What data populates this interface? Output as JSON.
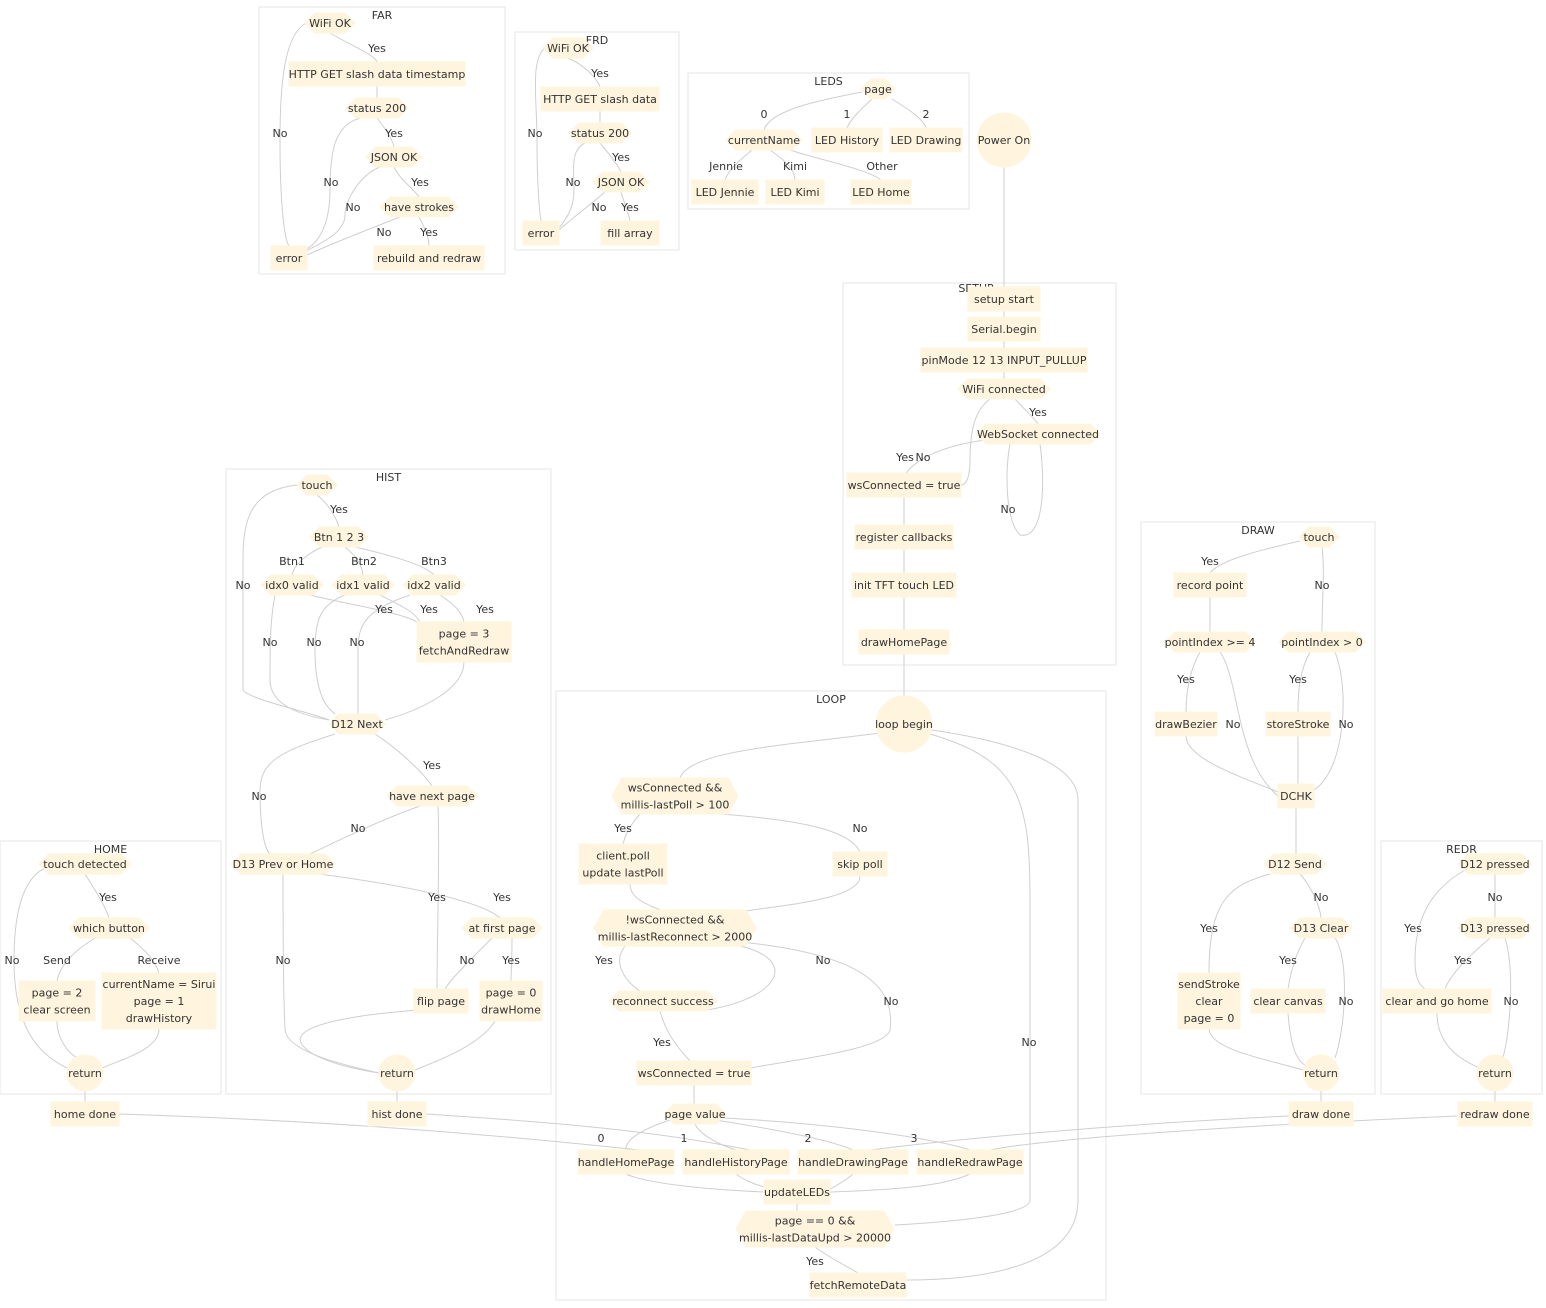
{
  "clusters": [
    {
      "id": "FAR",
      "label": "FAR"
    },
    {
      "id": "FRD",
      "label": "FRD"
    },
    {
      "id": "LEDS",
      "label": "LEDS"
    },
    {
      "id": "SETUP",
      "label": "SETUP"
    },
    {
      "id": "HIST",
      "label": "HIST"
    },
    {
      "id": "LOOP",
      "label": "LOOP"
    },
    {
      "id": "DRAW",
      "label": "DRAW"
    },
    {
      "id": "HOME",
      "label": "HOME"
    },
    {
      "id": "REDR",
      "label": "REDR"
    }
  ],
  "nodes": [
    {
      "id": "far_wifi",
      "lines": [
        "WiFi OK"
      ]
    },
    {
      "id": "far_get",
      "lines": [
        "HTTP GET slash data timestamp"
      ]
    },
    {
      "id": "far_status",
      "lines": [
        "status 200"
      ]
    },
    {
      "id": "far_json",
      "lines": [
        "JSON OK"
      ]
    },
    {
      "id": "far_strokes",
      "lines": [
        "have strokes"
      ]
    },
    {
      "id": "far_error",
      "lines": [
        "error"
      ]
    },
    {
      "id": "far_rebuild",
      "lines": [
        "rebuild and redraw"
      ]
    },
    {
      "id": "frd_wifi",
      "lines": [
        "WiFi OK"
      ]
    },
    {
      "id": "frd_get",
      "lines": [
        "HTTP GET slash data"
      ]
    },
    {
      "id": "frd_status",
      "lines": [
        "status 200"
      ]
    },
    {
      "id": "frd_json",
      "lines": [
        "JSON OK"
      ]
    },
    {
      "id": "frd_error",
      "lines": [
        "error"
      ]
    },
    {
      "id": "frd_fill",
      "lines": [
        "fill array"
      ]
    },
    {
      "id": "leds_page",
      "lines": [
        "page"
      ]
    },
    {
      "id": "leds_current",
      "lines": [
        "currentName"
      ]
    },
    {
      "id": "leds_history",
      "lines": [
        "LED History"
      ]
    },
    {
      "id": "leds_drawing",
      "lines": [
        "LED Drawing"
      ]
    },
    {
      "id": "leds_jennie",
      "lines": [
        "LED Jennie"
      ]
    },
    {
      "id": "leds_kimi",
      "lines": [
        "LED Kimi"
      ]
    },
    {
      "id": "leds_home",
      "lines": [
        "LED Home"
      ]
    },
    {
      "id": "power_on",
      "lines": [
        "Power On"
      ]
    },
    {
      "id": "setup_start",
      "lines": [
        "setup start"
      ]
    },
    {
      "id": "serial_begin",
      "lines": [
        "Serial.begin"
      ]
    },
    {
      "id": "pinmode",
      "lines": [
        "pinMode 12 13 INPUT_PULLUP"
      ]
    },
    {
      "id": "wifi_conn",
      "lines": [
        "WiFi connected"
      ]
    },
    {
      "id": "ws_conn",
      "lines": [
        "WebSocket connected"
      ]
    },
    {
      "id": "ws_true_setup",
      "lines": [
        "wsConnected = true"
      ]
    },
    {
      "id": "reg_cb",
      "lines": [
        "register callbacks"
      ]
    },
    {
      "id": "init_tft",
      "lines": [
        "init TFT touch LED"
      ]
    },
    {
      "id": "draw_home_page",
      "lines": [
        "drawHomePage"
      ]
    },
    {
      "id": "hist_touch",
      "lines": [
        "touch"
      ]
    },
    {
      "id": "hist_btn",
      "lines": [
        "Btn 1 2 3"
      ]
    },
    {
      "id": "hist_idx0",
      "lines": [
        "idx0 valid"
      ]
    },
    {
      "id": "hist_idx1",
      "lines": [
        "idx1 valid"
      ]
    },
    {
      "id": "hist_idx2",
      "lines": [
        "idx2 valid"
      ]
    },
    {
      "id": "hist_page3",
      "lines": [
        "page = 3",
        "fetchAndRedraw"
      ]
    },
    {
      "id": "hist_d12",
      "lines": [
        "D12 Next"
      ]
    },
    {
      "id": "hist_next",
      "lines": [
        "have next page"
      ]
    },
    {
      "id": "hist_d13",
      "lines": [
        "D13 Prev or Home"
      ]
    },
    {
      "id": "hist_first",
      "lines": [
        "at first page"
      ]
    },
    {
      "id": "hist_flip",
      "lines": [
        "flip page"
      ]
    },
    {
      "id": "hist_page0",
      "lines": [
        "page = 0",
        "drawHome"
      ]
    },
    {
      "id": "hist_return",
      "lines": [
        "return"
      ]
    },
    {
      "id": "loop_begin",
      "lines": [
        "loop begin"
      ]
    },
    {
      "id": "poll_cond",
      "lines": [
        "wsConnected &&",
        "millis-lastPoll > 100"
      ]
    },
    {
      "id": "client_poll",
      "lines": [
        "client.poll",
        "update lastPoll"
      ]
    },
    {
      "id": "skip_poll",
      "lines": [
        "skip poll"
      ]
    },
    {
      "id": "reconn_cond",
      "lines": [
        "!wsConnected &&",
        "millis-lastReconnect > 2000"
      ]
    },
    {
      "id": "reconn_ok",
      "lines": [
        "reconnect success"
      ]
    },
    {
      "id": "ws_true_loop",
      "lines": [
        "wsConnected = true"
      ]
    },
    {
      "id": "page_value",
      "lines": [
        "page value"
      ]
    },
    {
      "id": "h_home",
      "lines": [
        "handleHomePage"
      ]
    },
    {
      "id": "h_hist",
      "lines": [
        "handleHistoryPage"
      ]
    },
    {
      "id": "h_draw",
      "lines": [
        "handleDrawingPage"
      ]
    },
    {
      "id": "h_redraw",
      "lines": [
        "handleRedrawPage"
      ]
    },
    {
      "id": "update_leds",
      "lines": [
        "updateLEDs"
      ]
    },
    {
      "id": "page0_cond",
      "lines": [
        "page == 0 &&",
        "millis-lastDataUpd > 20000"
      ]
    },
    {
      "id": "fetch_remote",
      "lines": [
        "fetchRemoteData"
      ]
    },
    {
      "id": "draw_touch",
      "lines": [
        "touch"
      ]
    },
    {
      "id": "record_point",
      "lines": [
        "record point"
      ]
    },
    {
      "id": "pi_ge4",
      "lines": [
        "pointIndex >= 4"
      ]
    },
    {
      "id": "pi_gt0",
      "lines": [
        "pointIndex > 0"
      ]
    },
    {
      "id": "draw_bezier",
      "lines": [
        "drawBezier"
      ]
    },
    {
      "id": "store_stroke",
      "lines": [
        "storeStroke"
      ]
    },
    {
      "id": "dchk",
      "lines": [
        "DCHK"
      ]
    },
    {
      "id": "d12_send",
      "lines": [
        "D12 Send"
      ]
    },
    {
      "id": "send_stroke",
      "lines": [
        "sendStroke",
        "clear",
        "page = 0"
      ]
    },
    {
      "id": "d13_clear",
      "lines": [
        "D13 Clear"
      ]
    },
    {
      "id": "clear_canvas",
      "lines": [
        "clear canvas"
      ]
    },
    {
      "id": "draw_return",
      "lines": [
        "return"
      ]
    },
    {
      "id": "home_touch",
      "lines": [
        "touch detected"
      ]
    },
    {
      "id": "which_btn",
      "lines": [
        "which button"
      ]
    },
    {
      "id": "home_page2",
      "lines": [
        "page = 2",
        "clear screen"
      ]
    },
    {
      "id": "home_receive",
      "lines": [
        "currentName = Sirui",
        "page = 1",
        "drawHistory"
      ]
    },
    {
      "id": "home_return",
      "lines": [
        "return"
      ]
    },
    {
      "id": "d12_pressed",
      "lines": [
        "D12 pressed"
      ]
    },
    {
      "id": "d13_pressed",
      "lines": [
        "D13 pressed"
      ]
    },
    {
      "id": "clear_go_home",
      "lines": [
        "clear and go home"
      ]
    },
    {
      "id": "redr_return",
      "lines": [
        "return"
      ]
    },
    {
      "id": "home_done",
      "lines": [
        "home done"
      ]
    },
    {
      "id": "hist_done",
      "lines": [
        "hist done"
      ]
    },
    {
      "id": "draw_done",
      "lines": [
        "draw done"
      ]
    },
    {
      "id": "redraw_done",
      "lines": [
        "redraw done"
      ]
    }
  ],
  "edges": [
    {
      "from": "far_wifi",
      "to": "far_get",
      "label": "Yes"
    },
    {
      "from": "far_wifi",
      "to": "far_error",
      "label": "No"
    },
    {
      "from": "far_get",
      "to": "far_status",
      "label": ""
    },
    {
      "from": "far_status",
      "to": "far_json",
      "label": "Yes"
    },
    {
      "from": "far_status",
      "to": "far_error",
      "label": "No"
    },
    {
      "from": "far_json",
      "to": "far_strokes",
      "label": "Yes"
    },
    {
      "from": "far_json",
      "to": "far_error",
      "label": "No"
    },
    {
      "from": "far_strokes",
      "to": "far_rebuild",
      "label": "Yes"
    },
    {
      "from": "far_strokes",
      "to": "far_error",
      "label": "No"
    },
    {
      "from": "frd_wifi",
      "to": "frd_get",
      "label": "Yes"
    },
    {
      "from": "frd_wifi",
      "to": "frd_error",
      "label": "No"
    },
    {
      "from": "frd_get",
      "to": "frd_status",
      "label": ""
    },
    {
      "from": "frd_status",
      "to": "frd_json",
      "label": "Yes"
    },
    {
      "from": "frd_status",
      "to": "frd_error",
      "label": "No"
    },
    {
      "from": "frd_json",
      "to": "frd_fill",
      "label": "Yes"
    },
    {
      "from": "frd_json",
      "to": "frd_error",
      "label": "No"
    },
    {
      "from": "leds_page",
      "to": "leds_current",
      "label": "0"
    },
    {
      "from": "leds_page",
      "to": "leds_history",
      "label": "1"
    },
    {
      "from": "leds_page",
      "to": "leds_drawing",
      "label": "2"
    },
    {
      "from": "leds_current",
      "to": "leds_jennie",
      "label": "Jennie"
    },
    {
      "from": "leds_current",
      "to": "leds_kimi",
      "label": "Kimi"
    },
    {
      "from": "leds_current",
      "to": "leds_home",
      "label": "Other"
    },
    {
      "from": "power_on",
      "to": "setup_start",
      "label": ""
    },
    {
      "from": "setup_start",
      "to": "serial_begin",
      "label": ""
    },
    {
      "from": "serial_begin",
      "to": "pinmode",
      "label": ""
    },
    {
      "from": "pinmode",
      "to": "wifi_conn",
      "label": ""
    },
    {
      "from": "wifi_conn",
      "to": "ws_conn",
      "label": "Yes"
    },
    {
      "from": "wifi_conn",
      "to": "ws_true_setup",
      "label": "No"
    },
    {
      "from": "ws_conn",
      "to": "ws_true_setup",
      "label": "Yes"
    },
    {
      "from": "ws_conn",
      "to": "ws_conn",
      "label": "No"
    },
    {
      "from": "ws_true_setup",
      "to": "reg_cb",
      "label": ""
    },
    {
      "from": "reg_cb",
      "to": "init_tft",
      "label": ""
    },
    {
      "from": "init_tft",
      "to": "draw_home_page",
      "label": ""
    },
    {
      "from": "draw_home_page",
      "to": "loop_begin",
      "label": ""
    },
    {
      "from": "hist_touch",
      "to": "hist_btn",
      "label": "Yes"
    },
    {
      "from": "hist_touch",
      "to": "hist_d12",
      "label": "No"
    },
    {
      "from": "hist_btn",
      "to": "hist_idx0",
      "label": "Btn1"
    },
    {
      "from": "hist_btn",
      "to": "hist_idx1",
      "label": "Btn2"
    },
    {
      "from": "hist_btn",
      "to": "hist_idx2",
      "label": "Btn3"
    },
    {
      "from": "hist_idx0",
      "to": "hist_page3",
      "label": "Yes"
    },
    {
      "from": "hist_idx1",
      "to": "hist_page3",
      "label": "Yes"
    },
    {
      "from": "hist_idx2",
      "to": "hist_page3",
      "label": "Yes"
    },
    {
      "from": "hist_idx0",
      "to": "hist_d12",
      "label": "No"
    },
    {
      "from": "hist_idx1",
      "to": "hist_d12",
      "label": "No"
    },
    {
      "from": "hist_idx2",
      "to": "hist_d12",
      "label": "No"
    },
    {
      "from": "hist_page3",
      "to": "hist_d12",
      "label": ""
    },
    {
      "from": "hist_d12",
      "to": "hist_next",
      "label": "Yes"
    },
    {
      "from": "hist_d12",
      "to": "hist_d13",
      "label": "No"
    },
    {
      "from": "hist_next",
      "to": "hist_flip",
      "label": "Yes"
    },
    {
      "from": "hist_next",
      "to": "hist_d13",
      "label": "No"
    },
    {
      "from": "hist_d13",
      "to": "hist_first",
      "label": "Yes"
    },
    {
      "from": "hist_d13",
      "to": "hist_return",
      "label": "No"
    },
    {
      "from": "hist_first",
      "to": "hist_page0",
      "label": "Yes"
    },
    {
      "from": "hist_first",
      "to": "hist_flip",
      "label": "No"
    },
    {
      "from": "hist_flip",
      "to": "hist_return",
      "label": ""
    },
    {
      "from": "hist_page0",
      "to": "hist_return",
      "label": ""
    },
    {
      "from": "hist_return",
      "to": "hist_done",
      "label": ""
    },
    {
      "from": "loop_begin",
      "to": "poll_cond",
      "label": ""
    },
    {
      "from": "poll_cond",
      "to": "client_poll",
      "label": "Yes"
    },
    {
      "from": "poll_cond",
      "to": "skip_poll",
      "label": "No"
    },
    {
      "from": "client_poll",
      "to": "reconn_cond",
      "label": ""
    },
    {
      "from": "skip_poll",
      "to": "reconn_cond",
      "label": ""
    },
    {
      "from": "reconn_cond",
      "to": "reconn_ok",
      "label": "Yes"
    },
    {
      "from": "reconn_ok",
      "to": "reconn_cond",
      "label": "No"
    },
    {
      "from": "reconn_cond",
      "to": "ws_true_loop",
      "label": "No"
    },
    {
      "from": "reconn_ok",
      "to": "ws_true_loop",
      "label": "Yes"
    },
    {
      "from": "ws_true_loop",
      "to": "page_value",
      "label": ""
    },
    {
      "from": "page_value",
      "to": "h_home",
      "label": "0"
    },
    {
      "from": "page_value",
      "to": "h_hist",
      "label": "1"
    },
    {
      "from": "page_value",
      "to": "h_draw",
      "label": "2"
    },
    {
      "from": "page_value",
      "to": "h_redraw",
      "label": "3"
    },
    {
      "from": "h_home",
      "to": "update_leds",
      "label": ""
    },
    {
      "from": "h_hist",
      "to": "update_leds",
      "label": ""
    },
    {
      "from": "h_draw",
      "to": "update_leds",
      "label": ""
    },
    {
      "from": "h_redraw",
      "to": "update_leds",
      "label": ""
    },
    {
      "from": "update_leds",
      "to": "page0_cond",
      "label": ""
    },
    {
      "from": "page0_cond",
      "to": "fetch_remote",
      "label": "Yes"
    },
    {
      "from": "loop_begin",
      "to": "page0_cond",
      "label": "No"
    },
    {
      "from": "fetch_remote",
      "to": "loop_begin",
      "label": ""
    },
    {
      "from": "draw_touch",
      "to": "record_point",
      "label": "Yes"
    },
    {
      "from": "draw_touch",
      "to": "pi_gt0",
      "label": "No"
    },
    {
      "from": "record_point",
      "to": "pi_ge4",
      "label": ""
    },
    {
      "from": "pi_ge4",
      "to": "draw_bezier",
      "label": "Yes"
    },
    {
      "from": "pi_ge4",
      "to": "dchk",
      "label": "No"
    },
    {
      "from": "pi_gt0",
      "to": "store_stroke",
      "label": "Yes"
    },
    {
      "from": "pi_gt0",
      "to": "dchk",
      "label": "No"
    },
    {
      "from": "draw_bezier",
      "to": "dchk",
      "label": ""
    },
    {
      "from": "store_stroke",
      "to": "dchk",
      "label": ""
    },
    {
      "from": "dchk",
      "to": "d12_send",
      "label": ""
    },
    {
      "from": "d12_send",
      "to": "send_stroke",
      "label": "Yes"
    },
    {
      "from": "d12_send",
      "to": "d13_clear",
      "label": "No"
    },
    {
      "from": "d13_clear",
      "to": "clear_canvas",
      "label": "Yes"
    },
    {
      "from": "d13_clear",
      "to": "draw_return",
      "label": "No"
    },
    {
      "from": "send_stroke",
      "to": "draw_return",
      "label": ""
    },
    {
      "from": "clear_canvas",
      "to": "draw_return",
      "label": ""
    },
    {
      "from": "draw_return",
      "to": "draw_done",
      "label": ""
    },
    {
      "from": "home_touch",
      "to": "which_btn",
      "label": "Yes"
    },
    {
      "from": "home_touch",
      "to": "home_return",
      "label": "No"
    },
    {
      "from": "which_btn",
      "to": "home_page2",
      "label": "Send"
    },
    {
      "from": "which_btn",
      "to": "home_receive",
      "label": "Receive"
    },
    {
      "from": "home_page2",
      "to": "home_return",
      "label": ""
    },
    {
      "from": "home_receive",
      "to": "home_return",
      "label": ""
    },
    {
      "from": "home_return",
      "to": "home_done",
      "label": ""
    },
    {
      "from": "d12_pressed",
      "to": "clear_go_home",
      "label": "Yes"
    },
    {
      "from": "d12_pressed",
      "to": "d13_pressed",
      "label": "No"
    },
    {
      "from": "d13_pressed",
      "to": "clear_go_home",
      "label": "Yes"
    },
    {
      "from": "d13_pressed",
      "to": "redr_return",
      "label": "No"
    },
    {
      "from": "clear_go_home",
      "to": "redr_return",
      "label": ""
    },
    {
      "from": "redr_return",
      "to": "redraw_done",
      "label": ""
    },
    {
      "from": "home_done",
      "to": "h_home",
      "label": ""
    },
    {
      "from": "hist_done",
      "to": "h_hist",
      "label": ""
    },
    {
      "from": "draw_done",
      "to": "h_draw",
      "label": ""
    },
    {
      "from": "redraw_done",
      "to": "h_redraw",
      "label": ""
    }
  ]
}
